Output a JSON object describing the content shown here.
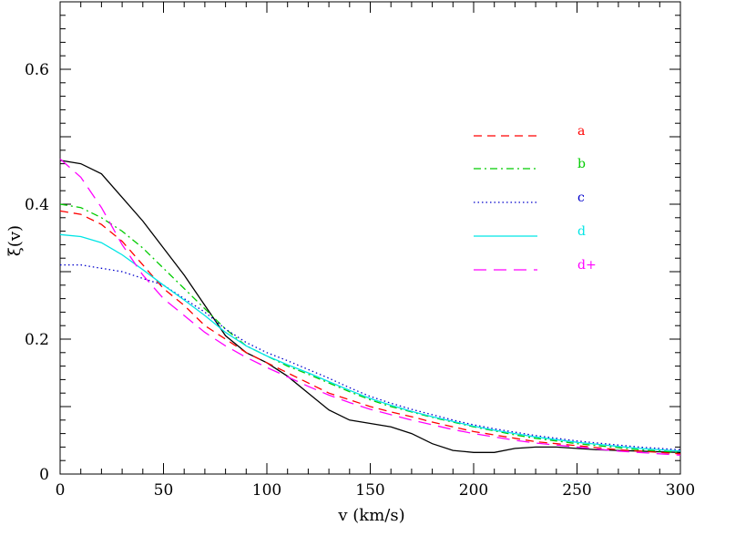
{
  "chart_data": {
    "type": "line",
    "title": "",
    "xlabel": "v (km/s)",
    "ylabel": "ξ(v)",
    "xlim": [
      0,
      300
    ],
    "ylim": [
      0,
      0.7
    ],
    "xticks": [
      0,
      50,
      100,
      150,
      200,
      250,
      300
    ],
    "xtick_labels": [
      "0",
      "50",
      "100",
      "150",
      "200",
      "250",
      "300"
    ],
    "yticks": [
      0,
      0.2,
      0.4,
      0.6
    ],
    "ytick_labels": [
      "0",
      "0.2",
      "0.4",
      "0.6"
    ],
    "grid": false,
    "legend_position": "top-right",
    "black_curve": {
      "color": "#000000",
      "dash": "solid",
      "points": [
        [
          0,
          0.465
        ],
        [
          10,
          0.46
        ],
        [
          20,
          0.445
        ],
        [
          30,
          0.41
        ],
        [
          40,
          0.375
        ],
        [
          50,
          0.335
        ],
        [
          60,
          0.295
        ],
        [
          70,
          0.25
        ],
        [
          80,
          0.205
        ],
        [
          90,
          0.18
        ],
        [
          100,
          0.165
        ],
        [
          110,
          0.145
        ],
        [
          120,
          0.12
        ],
        [
          130,
          0.095
        ],
        [
          140,
          0.08
        ],
        [
          150,
          0.075
        ],
        [
          160,
          0.07
        ],
        [
          170,
          0.06
        ],
        [
          180,
          0.045
        ],
        [
          190,
          0.035
        ],
        [
          200,
          0.032
        ],
        [
          210,
          0.032
        ],
        [
          220,
          0.038
        ],
        [
          230,
          0.04
        ],
        [
          240,
          0.04
        ],
        [
          250,
          0.038
        ],
        [
          260,
          0.036
        ],
        [
          270,
          0.035
        ],
        [
          280,
          0.034
        ],
        [
          290,
          0.033
        ],
        [
          300,
          0.032
        ]
      ]
    },
    "series": [
      {
        "name": "a",
        "color": "#ff0000",
        "dash": "dashed",
        "points": [
          [
            0,
            0.39
          ],
          [
            10,
            0.385
          ],
          [
            20,
            0.37
          ],
          [
            30,
            0.345
          ],
          [
            40,
            0.31
          ],
          [
            50,
            0.275
          ],
          [
            60,
            0.25
          ],
          [
            70,
            0.22
          ],
          [
            80,
            0.2
          ],
          [
            90,
            0.18
          ],
          [
            100,
            0.165
          ],
          [
            110,
            0.15
          ],
          [
            120,
            0.135
          ],
          [
            130,
            0.12
          ],
          [
            140,
            0.11
          ],
          [
            150,
            0.1
          ],
          [
            160,
            0.092
          ],
          [
            170,
            0.085
          ],
          [
            180,
            0.077
          ],
          [
            190,
            0.07
          ],
          [
            200,
            0.063
          ],
          [
            210,
            0.058
          ],
          [
            220,
            0.053
          ],
          [
            230,
            0.048
          ],
          [
            240,
            0.045
          ],
          [
            250,
            0.042
          ],
          [
            260,
            0.039
          ],
          [
            270,
            0.036
          ],
          [
            280,
            0.034
          ],
          [
            290,
            0.032
          ],
          [
            300,
            0.03
          ]
        ]
      },
      {
        "name": "b",
        "color": "#00cc00",
        "dash": "dashdot",
        "points": [
          [
            0,
            0.4
          ],
          [
            10,
            0.395
          ],
          [
            20,
            0.38
          ],
          [
            30,
            0.36
          ],
          [
            40,
            0.335
          ],
          [
            50,
            0.305
          ],
          [
            60,
            0.275
          ],
          [
            70,
            0.245
          ],
          [
            80,
            0.215
          ],
          [
            90,
            0.19
          ],
          [
            100,
            0.175
          ],
          [
            110,
            0.16
          ],
          [
            120,
            0.148
          ],
          [
            130,
            0.135
          ],
          [
            140,
            0.122
          ],
          [
            150,
            0.11
          ],
          [
            160,
            0.1
          ],
          [
            170,
            0.092
          ],
          [
            180,
            0.084
          ],
          [
            190,
            0.077
          ],
          [
            200,
            0.07
          ],
          [
            210,
            0.064
          ],
          [
            220,
            0.058
          ],
          [
            230,
            0.053
          ],
          [
            240,
            0.049
          ],
          [
            250,
            0.045
          ],
          [
            260,
            0.042
          ],
          [
            270,
            0.039
          ],
          [
            280,
            0.036
          ],
          [
            290,
            0.034
          ],
          [
            300,
            0.032
          ]
        ]
      },
      {
        "name": "c",
        "color": "#0000cc",
        "dash": "dotted",
        "points": [
          [
            0,
            0.31
          ],
          [
            10,
            0.31
          ],
          [
            20,
            0.305
          ],
          [
            30,
            0.3
          ],
          [
            40,
            0.29
          ],
          [
            50,
            0.28
          ],
          [
            60,
            0.26
          ],
          [
            70,
            0.24
          ],
          [
            80,
            0.215
          ],
          [
            90,
            0.195
          ],
          [
            100,
            0.18
          ],
          [
            110,
            0.168
          ],
          [
            120,
            0.155
          ],
          [
            130,
            0.142
          ],
          [
            140,
            0.128
          ],
          [
            150,
            0.115
          ],
          [
            160,
            0.105
          ],
          [
            170,
            0.096
          ],
          [
            180,
            0.088
          ],
          [
            190,
            0.08
          ],
          [
            200,
            0.073
          ],
          [
            210,
            0.067
          ],
          [
            220,
            0.062
          ],
          [
            230,
            0.057
          ],
          [
            240,
            0.053
          ],
          [
            250,
            0.049
          ],
          [
            260,
            0.046
          ],
          [
            270,
            0.043
          ],
          [
            280,
            0.04
          ],
          [
            290,
            0.038
          ],
          [
            300,
            0.036
          ]
        ]
      },
      {
        "name": "d",
        "color": "#00e5e5",
        "dash": "solid",
        "points": [
          [
            0,
            0.355
          ],
          [
            10,
            0.352
          ],
          [
            20,
            0.343
          ],
          [
            30,
            0.325
          ],
          [
            40,
            0.303
          ],
          [
            50,
            0.28
          ],
          [
            60,
            0.258
          ],
          [
            70,
            0.235
          ],
          [
            80,
            0.21
          ],
          [
            90,
            0.19
          ],
          [
            100,
            0.175
          ],
          [
            110,
            0.162
          ],
          [
            120,
            0.15
          ],
          [
            130,
            0.137
          ],
          [
            140,
            0.124
          ],
          [
            150,
            0.112
          ],
          [
            160,
            0.102
          ],
          [
            170,
            0.093
          ],
          [
            180,
            0.085
          ],
          [
            190,
            0.078
          ],
          [
            200,
            0.071
          ],
          [
            210,
            0.065
          ],
          [
            220,
            0.06
          ],
          [
            230,
            0.055
          ],
          [
            240,
            0.051
          ],
          [
            250,
            0.047
          ],
          [
            260,
            0.044
          ],
          [
            270,
            0.041
          ],
          [
            280,
            0.038
          ],
          [
            290,
            0.036
          ],
          [
            300,
            0.034
          ]
        ]
      },
      {
        "name": "d+",
        "color": "#ff00ff",
        "dash": "longdash",
        "points": [
          [
            0,
            0.467
          ],
          [
            10,
            0.44
          ],
          [
            20,
            0.395
          ],
          [
            30,
            0.34
          ],
          [
            40,
            0.295
          ],
          [
            50,
            0.26
          ],
          [
            60,
            0.235
          ],
          [
            70,
            0.21
          ],
          [
            80,
            0.19
          ],
          [
            90,
            0.173
          ],
          [
            100,
            0.158
          ],
          [
            110,
            0.144
          ],
          [
            120,
            0.13
          ],
          [
            130,
            0.117
          ],
          [
            140,
            0.106
          ],
          [
            150,
            0.096
          ],
          [
            160,
            0.088
          ],
          [
            170,
            0.08
          ],
          [
            180,
            0.073
          ],
          [
            190,
            0.066
          ],
          [
            200,
            0.06
          ],
          [
            210,
            0.055
          ],
          [
            220,
            0.05
          ],
          [
            230,
            0.046
          ],
          [
            240,
            0.043
          ],
          [
            250,
            0.04
          ],
          [
            260,
            0.037
          ],
          [
            270,
            0.034
          ],
          [
            280,
            0.032
          ],
          [
            290,
            0.03
          ],
          [
            300,
            0.028
          ]
        ]
      }
    ]
  }
}
